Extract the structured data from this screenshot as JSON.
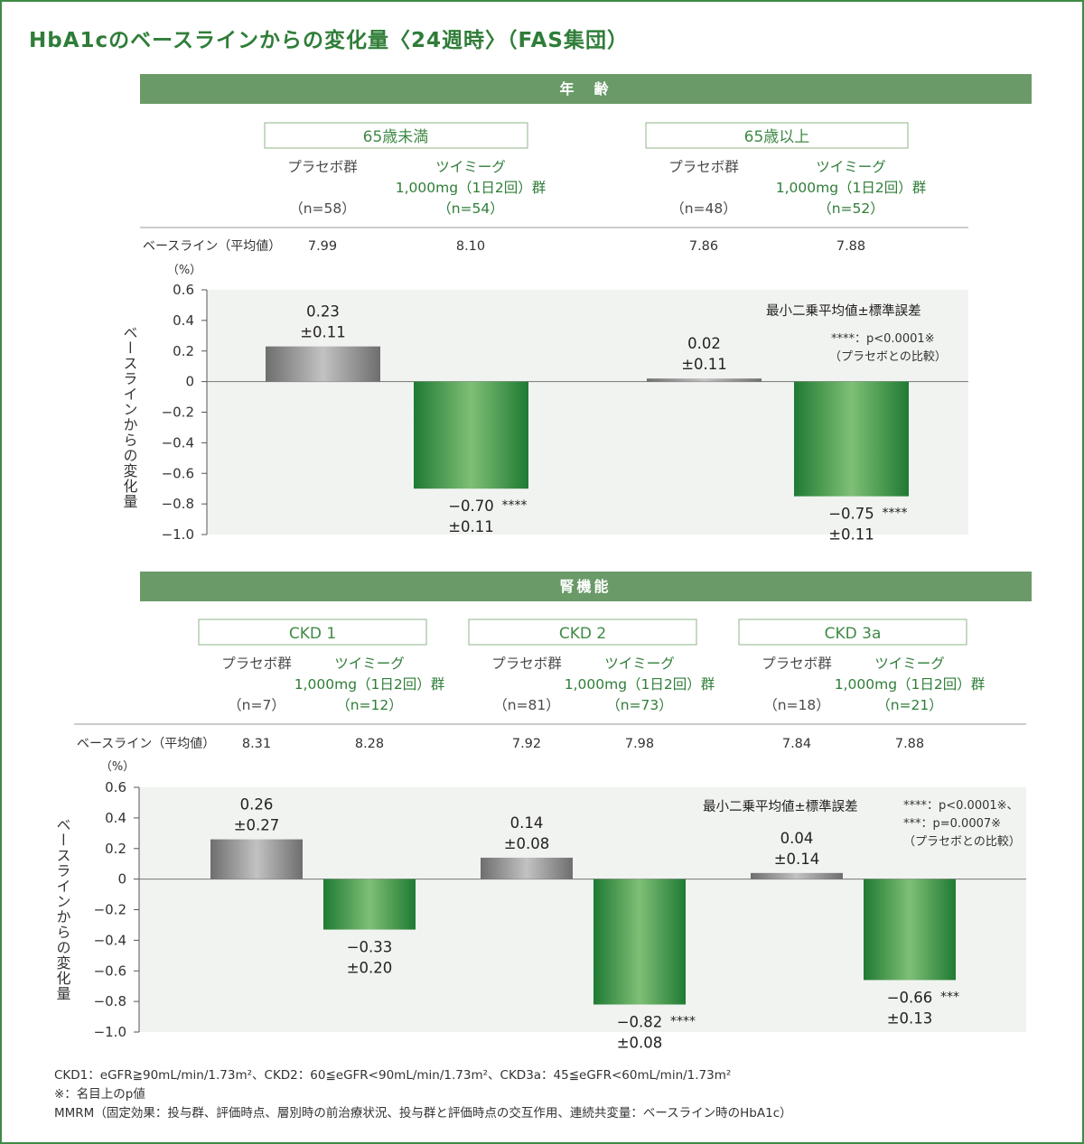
{
  "title": "HbA1cのベースラインからの変化量〈24週時〉（FAS集団）",
  "colors": {
    "accent": "#3f8a45",
    "section_bar": "#6a9a68",
    "placebo_bar": "#8c8c8c",
    "treatment_bar": "#2f8a3e",
    "plot_bg": "#f1f3f0"
  },
  "chart_data": [
    {
      "type": "bar",
      "section_title": "年　齢",
      "subgroups": [
        "65歳未満",
        "65歳以上"
      ],
      "group_names": {
        "placebo": "プラセボ群",
        "treatment_line1": "ツイミーグ",
        "treatment_line2": "1,000mg（1日2回）群"
      },
      "n": [
        {
          "placebo": "（n=58）",
          "treatment": "（n=54）"
        },
        {
          "placebo": "（n=48）",
          "treatment": "（n=52）"
        }
      ],
      "baseline_label": "ベースライン（平均値）",
      "baseline": [
        {
          "placebo": "7.99",
          "treatment": "8.10"
        },
        {
          "placebo": "7.86",
          "treatment": "7.88"
        }
      ],
      "unit": "（%）",
      "ylabel": "ベースラインからの変化量",
      "ylim": [
        -1.0,
        0.6
      ],
      "yticks": [
        "0.6",
        "0.4",
        "0.2",
        "0",
        "−0.2",
        "−0.4",
        "−0.6",
        "−0.8",
        "−1.0"
      ],
      "series": [
        {
          "name": "プラセボ群",
          "values": [
            0.23,
            0.02
          ],
          "labels": [
            "0.23",
            "0.02"
          ],
          "se": [
            "±0.11",
            "±0.11"
          ],
          "sig": [
            "",
            ""
          ]
        },
        {
          "name": "ツイミーグ 1,000mg（1日2回）群",
          "values": [
            -0.7,
            -0.75
          ],
          "labels": [
            "−0.70",
            "−0.75"
          ],
          "se": [
            "±0.11",
            "±0.11"
          ],
          "sig": [
            "****",
            "****"
          ]
        }
      ],
      "legend_title": "最小二乗平均値±標準誤差",
      "legend_lines": [
        "****：p<0.0001※",
        "（プラセボとの比較）"
      ]
    },
    {
      "type": "bar",
      "section_title": "腎機能",
      "subgroups": [
        "CKD 1",
        "CKD 2",
        "CKD 3a"
      ],
      "group_names": {
        "placebo": "プラセボ群",
        "treatment_line1": "ツイミーグ",
        "treatment_line2": "1,000mg（1日2回）群"
      },
      "n": [
        {
          "placebo": "（n=7）",
          "treatment": "（n=12）"
        },
        {
          "placebo": "（n=81）",
          "treatment": "（n=73）"
        },
        {
          "placebo": "（n=18）",
          "treatment": "（n=21）"
        }
      ],
      "baseline_label": "ベースライン（平均値）",
      "baseline": [
        {
          "placebo": "8.31",
          "treatment": "8.28"
        },
        {
          "placebo": "7.92",
          "treatment": "7.98"
        },
        {
          "placebo": "7.84",
          "treatment": "7.88"
        }
      ],
      "unit": "（%）",
      "ylabel": "ベースラインからの変化量",
      "ylim": [
        -1.0,
        0.6
      ],
      "yticks": [
        "0.6",
        "0.4",
        "0.2",
        "0",
        "−0.2",
        "−0.4",
        "−0.6",
        "−0.8",
        "−1.0"
      ],
      "series": [
        {
          "name": "プラセボ群",
          "values": [
            0.26,
            0.14,
            0.04
          ],
          "labels": [
            "0.26",
            "0.14",
            "0.04"
          ],
          "se": [
            "±0.27",
            "±0.08",
            "±0.14"
          ],
          "sig": [
            "",
            "",
            ""
          ]
        },
        {
          "name": "ツイミーグ 1,000mg（1日2回）群",
          "values": [
            -0.33,
            -0.82,
            -0.66
          ],
          "labels": [
            "−0.33",
            "−0.82",
            "−0.66"
          ],
          "se": [
            "±0.20",
            "±0.08",
            "±0.13"
          ],
          "sig": [
            "",
            "****",
            "***"
          ]
        }
      ],
      "legend_title": "最小二乗平均値±標準誤差",
      "legend_lines": [
        "****：p<0.0001※、",
        "***：p=0.0007※",
        "（プラセボとの比較）"
      ]
    }
  ],
  "footnotes": [
    "CKD1：eGFR≧90mL/min/1.73m²、CKD2：60≦eGFR<90mL/min/1.73m²、CKD3a：45≦eGFR<60mL/min/1.73m²",
    "※：名目上のp値",
    "MMRM（固定効果：投与群、評価時点、層別時の前治療状況、投与群と評価時点の交互作用、連続共変量：ベースライン時のHbA1c）"
  ]
}
